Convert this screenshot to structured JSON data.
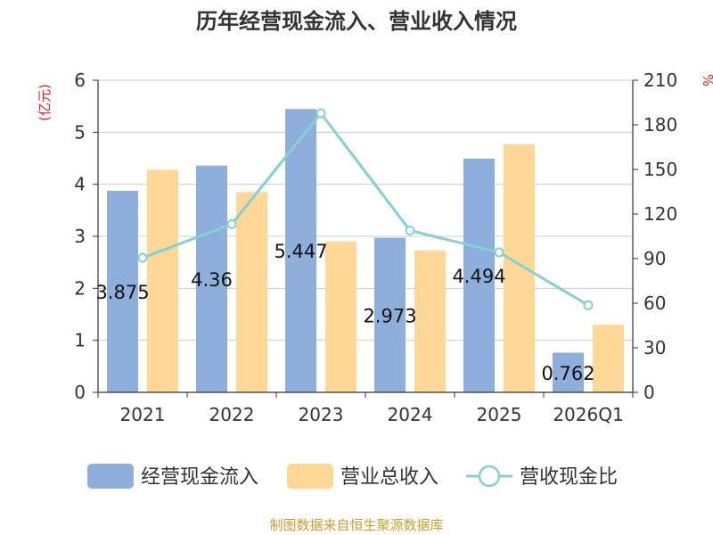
{
  "chart_data": {
    "type": "bar",
    "title": "历年经营现金流入、营业收入情况",
    "categories": [
      "2021",
      "2022",
      "2023",
      "2024",
      "2025",
      "2026Q1"
    ],
    "left_axis": {
      "unit": "(亿元)",
      "range": [
        0,
        6
      ],
      "ticks": [
        "0",
        "1",
        "2",
        "3",
        "4",
        "5",
        "6"
      ]
    },
    "right_axis": {
      "unit": "%",
      "range": [
        0,
        210
      ],
      "ticks": [
        "0",
        "30",
        "60",
        "90",
        "120",
        "150",
        "180",
        "210"
      ]
    },
    "series": [
      {
        "name": "经营现金流入",
        "type": "bar",
        "axis": "left",
        "color": "#8eaedc",
        "values": [
          3.875,
          4.36,
          5.447,
          2.973,
          4.494,
          0.762
        ],
        "data_labels": [
          "3.875",
          "4.36",
          "5.447",
          "2.973",
          "4.494",
          "0.762"
        ]
      },
      {
        "name": "营业总收入",
        "type": "bar",
        "axis": "left",
        "color": "#ffd898",
        "values": [
          4.28,
          3.85,
          2.9,
          2.73,
          4.77,
          1.3
        ]
      },
      {
        "name": "营收现金比",
        "type": "line",
        "axis": "right",
        "color": "#85d0d3",
        "values": [
          90.5,
          113.2,
          187.8,
          108.9,
          94.2,
          58.6
        ]
      }
    ],
    "grid": true,
    "legend_position": "bottom",
    "source": "制图数据来自恒生聚源数据库",
    "colors": {
      "left_unit": "#e02020",
      "right_unit": "#e02020",
      "source": "#c8a030",
      "gridline": "#cccccc"
    }
  }
}
